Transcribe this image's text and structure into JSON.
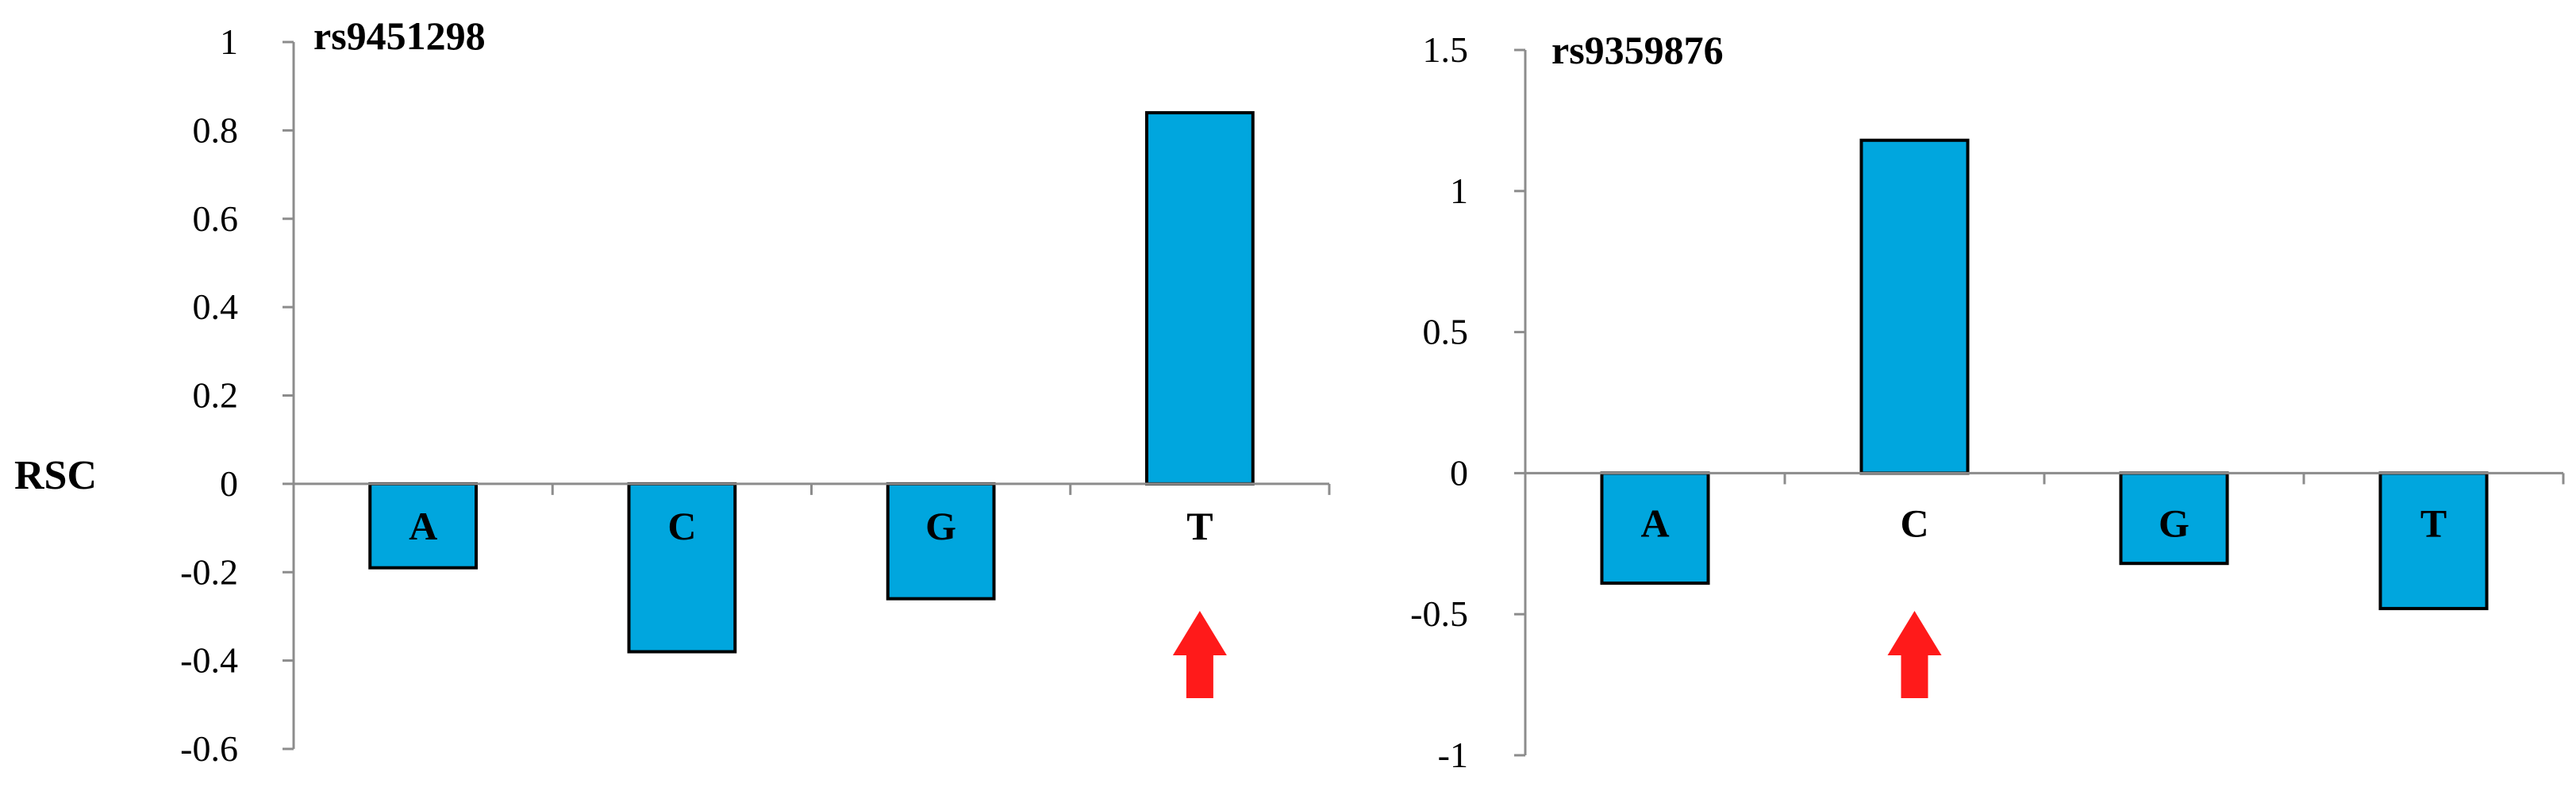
{
  "colors": {
    "bar_fill": "#00A6DE",
    "bar_stroke": "#000000",
    "axis": "#8C8C8C",
    "arrow": "#FF1A1A"
  },
  "chart_data": [
    {
      "type": "bar",
      "title": "rs9451298",
      "ylabel": "RSC",
      "xlabel": "",
      "categories": [
        "A",
        "C",
        "G",
        "T"
      ],
      "values": [
        -0.19,
        -0.38,
        -0.26,
        0.84
      ],
      "ylim": [
        -0.6,
        1
      ],
      "yticks": [
        1,
        0.8,
        0.6,
        0.4,
        0.2,
        0,
        -0.2,
        -0.4,
        -0.6
      ],
      "ytick_labels": [
        "1",
        "0.8",
        "0.6",
        "0.4",
        "0.2",
        "0",
        "-0.2",
        "-0.4",
        "-0.6"
      ],
      "grid": false,
      "highlight_category": "T",
      "highlight_marker": "red-up-arrow"
    },
    {
      "type": "bar",
      "title": "rs9359876",
      "ylabel": "",
      "xlabel": "",
      "categories": [
        "A",
        "C",
        "G",
        "T"
      ],
      "values": [
        -0.39,
        1.18,
        -0.32,
        -0.48
      ],
      "ylim": [
        -1,
        1.5
      ],
      "yticks": [
        1.5,
        1,
        0.5,
        0,
        -0.5,
        -1
      ],
      "ytick_labels": [
        "1.5",
        "1",
        "0.5",
        "0",
        "-0.5",
        "-1"
      ],
      "grid": false,
      "highlight_category": "C",
      "highlight_marker": "red-up-arrow"
    }
  ]
}
